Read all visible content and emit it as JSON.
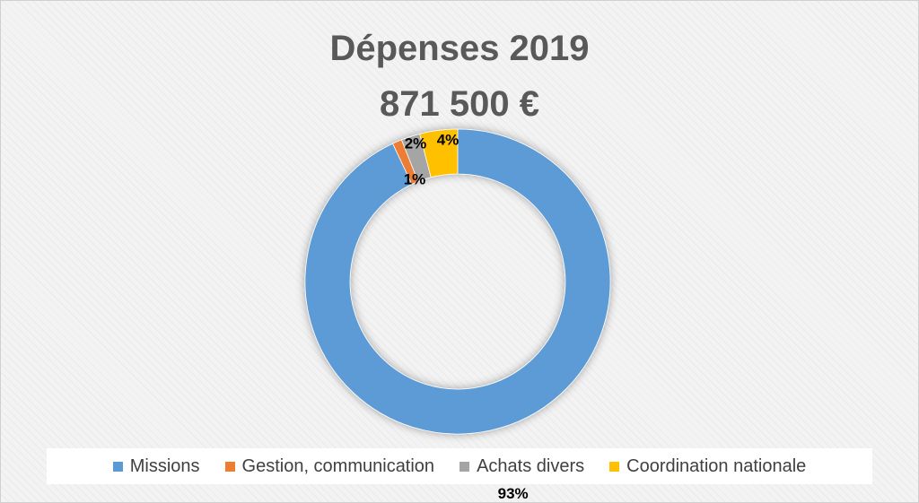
{
  "chart_data": {
    "type": "pie",
    "variant": "doughnut",
    "title": "Dépenses 2019",
    "subtitle": "871 500 €",
    "categories": [
      "Missions",
      "Gestion, communication",
      "Achats divers",
      "Coordination nationale"
    ],
    "values": [
      93,
      1,
      2,
      4
    ],
    "data_labels": [
      "93%",
      "1%",
      "2%",
      "4%"
    ],
    "colors": [
      "#5b9bd5",
      "#ed7d31",
      "#a5a5a5",
      "#ffc000"
    ],
    "legend_position": "bottom"
  }
}
